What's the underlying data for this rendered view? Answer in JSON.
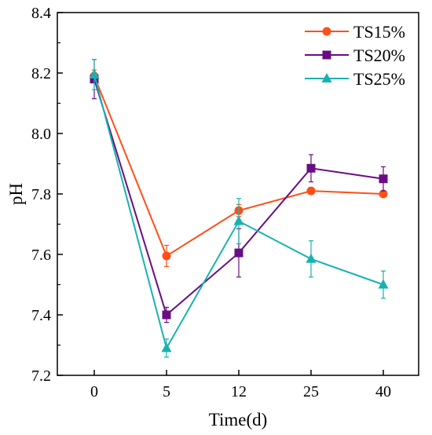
{
  "chart_data": {
    "type": "line",
    "title": "",
    "xlabel": "Time(d)",
    "ylabel": "pH",
    "categories": [
      "0",
      "5",
      "12",
      "25",
      "40"
    ],
    "ylim": [
      7.2,
      8.4
    ],
    "yticks": [
      "7.2",
      "7.4",
      "7.6",
      "7.8",
      "8.0",
      "8.2",
      "8.4"
    ],
    "grid": false,
    "legend_position": "top-right",
    "series": [
      {
        "name": "TS15%",
        "color": "#FF4F19",
        "marker": "circle",
        "values": [
          8.19,
          7.595,
          7.745,
          7.81,
          7.8
        ],
        "errors": [
          0.02,
          0.035,
          0.02,
          0.01,
          0.01
        ]
      },
      {
        "name": "TS20%",
        "color": "#6A0D83",
        "marker": "square",
        "values": [
          8.18,
          7.4,
          7.605,
          7.885,
          7.85
        ],
        "errors": [
          0.065,
          0.025,
          0.08,
          0.045,
          0.04
        ]
      },
      {
        "name": "TS25%",
        "color": "#17B2B0",
        "marker": "triangle",
        "values": [
          8.195,
          7.29,
          7.71,
          7.585,
          7.5
        ],
        "errors": [
          0.05,
          0.03,
          0.075,
          0.06,
          0.045
        ]
      }
    ]
  }
}
